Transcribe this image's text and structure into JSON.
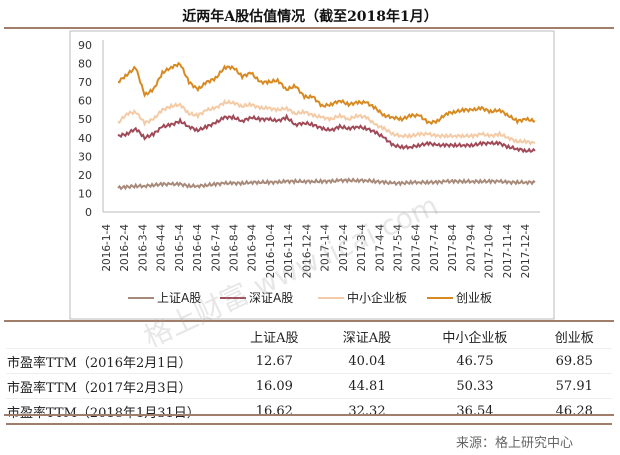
{
  "chart_data": {
    "type": "line",
    "title": "近两年A股估值情况（截至2018年1月）",
    "xlabel": "",
    "ylabel": "",
    "ylim": [
      0,
      90
    ],
    "yticks": [
      0,
      10,
      20,
      30,
      40,
      50,
      60,
      70,
      80,
      90
    ],
    "xtick_labels": [
      "2016-1-4",
      "2016-2-4",
      "2016-3-4",
      "2016-4-4",
      "2016-5-4",
      "2016-6-4",
      "2016-7-4",
      "2016-8-4",
      "2016-9-4",
      "2016-10-4",
      "2016-11-4",
      "2016-12-4",
      "2017-1-4",
      "2017-2-4",
      "2017-3-4",
      "2017-4-4",
      "2017-5-4",
      "2017-6-4",
      "2017-7-4",
      "2017-8-4",
      "2017-9-4",
      "2017-10-4",
      "2017-11-4",
      "2017-12-4"
    ],
    "x_note": "semi-monthly samples from 2016-01 to 2018-01",
    "legend_position": "bottom",
    "grid": false,
    "series": [
      {
        "name": "上证A股",
        "color": "#a88a7a",
        "values": [
          13,
          13.5,
          14,
          14,
          14.5,
          15,
          15,
          15,
          14,
          14,
          14.5,
          15,
          15.5,
          15.5,
          15.5,
          16,
          16,
          16,
          16,
          16.5,
          16.5,
          16.5,
          16.5,
          16.5,
          16.5,
          17,
          17,
          17,
          17,
          16.5,
          16,
          15.5,
          15.5,
          16,
          16,
          16,
          16,
          16.5,
          16.5,
          16.5,
          16.5,
          16.5,
          16.5,
          16.5,
          16,
          16,
          16,
          16
        ]
      },
      {
        "name": "深证A股",
        "color": "#a04a58",
        "values": [
          41,
          42,
          45,
          40,
          42,
          46,
          47,
          49,
          46,
          44,
          46,
          48,
          51,
          51,
          49,
          51,
          50,
          50,
          49,
          51,
          47,
          48,
          47,
          45,
          44,
          46,
          45,
          46,
          45,
          43,
          40,
          36,
          35,
          35,
          36,
          37,
          36,
          36,
          36,
          36,
          36,
          37,
          37,
          37,
          35,
          34,
          33,
          33
        ]
      },
      {
        "name": "中小企业板",
        "color": "#f3cba6",
        "values": [
          48,
          53,
          54,
          48,
          50,
          55,
          57,
          58,
          53,
          52,
          55,
          56,
          59,
          59,
          57,
          58,
          56,
          56,
          55,
          56,
          53,
          54,
          52,
          51,
          50,
          52,
          50,
          52,
          51,
          47,
          45,
          42,
          41,
          41,
          42,
          42,
          41,
          41,
          41,
          41,
          41,
          42,
          41,
          42,
          40,
          38,
          38,
          37
        ]
      },
      {
        "name": "创业板",
        "color": "#d88a22",
        "values": [
          70,
          74,
          78,
          63,
          66,
          75,
          78,
          80,
          70,
          66,
          70,
          72,
          78,
          78,
          73,
          75,
          70,
          70,
          71,
          66,
          68,
          62,
          62,
          57,
          58,
          60,
          58,
          59,
          59,
          56,
          52,
          51,
          50,
          52,
          52,
          48,
          49,
          53,
          54,
          55,
          55,
          56,
          54,
          55,
          52,
          49,
          50,
          49
        ]
      }
    ]
  },
  "table": {
    "headers": [
      "",
      "上证A股",
      "深证A股",
      "中小企业板",
      "创业板"
    ],
    "rows": [
      [
        "市盈率TTM（2016年2月1日）",
        "12.67",
        "40.04",
        "46.75",
        "69.85"
      ],
      [
        "市盈率TTM（2017年2月3日）",
        "16.09",
        "44.81",
        "50.33",
        "57.91"
      ],
      [
        "市盈率TTM（2018年1月31日）",
        "16.62",
        "32.32",
        "36.54",
        "46.28"
      ]
    ]
  },
  "source": "来源：格上研究中心",
  "watermark": "格上财富 www.licai.com"
}
